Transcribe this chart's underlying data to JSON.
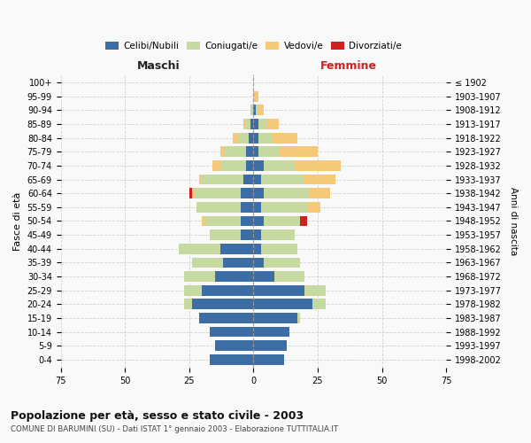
{
  "age_groups": [
    "0-4",
    "5-9",
    "10-14",
    "15-19",
    "20-24",
    "25-29",
    "30-34",
    "35-39",
    "40-44",
    "45-49",
    "50-54",
    "55-59",
    "60-64",
    "65-69",
    "70-74",
    "75-79",
    "80-84",
    "85-89",
    "90-94",
    "95-99",
    "100+"
  ],
  "birth_years": [
    "1998-2002",
    "1993-1997",
    "1988-1992",
    "1983-1987",
    "1978-1982",
    "1973-1977",
    "1968-1972",
    "1963-1967",
    "1958-1962",
    "1953-1957",
    "1948-1952",
    "1943-1947",
    "1938-1942",
    "1933-1937",
    "1928-1932",
    "1923-1927",
    "1918-1922",
    "1913-1917",
    "1908-1912",
    "1903-1907",
    "≤ 1902"
  ],
  "colors": {
    "celibi": "#3c6ea5",
    "coniugati": "#c5d9a0",
    "vedovi": "#f5c97a",
    "divorziati": "#cc2222"
  },
  "legend_labels": [
    "Celibi/Nubili",
    "Coniugati/e",
    "Vedovi/e",
    "Divorziati/e"
  ],
  "maschi": {
    "celibi": [
      17,
      15,
      17,
      21,
      24,
      20,
      15,
      12,
      13,
      5,
      5,
      5,
      5,
      4,
      3,
      3,
      2,
      1,
      0,
      0,
      0
    ],
    "coniugati": [
      0,
      0,
      0,
      0,
      3,
      7,
      12,
      12,
      16,
      12,
      14,
      17,
      18,
      16,
      10,
      8,
      4,
      2,
      1,
      0,
      0
    ],
    "vedovi": [
      0,
      0,
      0,
      0,
      0,
      0,
      0,
      0,
      0,
      0,
      1,
      0,
      1,
      1,
      3,
      2,
      2,
      1,
      0,
      0,
      0
    ],
    "divorziati": [
      0,
      0,
      0,
      0,
      0,
      0,
      0,
      0,
      0,
      0,
      0,
      0,
      1,
      0,
      0,
      0,
      0,
      0,
      0,
      0,
      0
    ]
  },
  "femmine": {
    "celibi": [
      12,
      13,
      14,
      17,
      23,
      20,
      8,
      4,
      3,
      3,
      4,
      3,
      4,
      3,
      4,
      2,
      2,
      2,
      1,
      0,
      0
    ],
    "coniugati": [
      0,
      0,
      0,
      1,
      5,
      8,
      12,
      14,
      14,
      13,
      14,
      18,
      18,
      17,
      12,
      8,
      5,
      3,
      1,
      0,
      0
    ],
    "vedovi": [
      0,
      0,
      0,
      0,
      0,
      0,
      0,
      0,
      0,
      0,
      0,
      5,
      8,
      12,
      18,
      15,
      10,
      5,
      2,
      2,
      0
    ],
    "divorziati": [
      0,
      0,
      0,
      0,
      0,
      0,
      0,
      0,
      0,
      0,
      3,
      0,
      0,
      0,
      0,
      0,
      0,
      0,
      0,
      0,
      0
    ]
  },
  "xlim": 75,
  "xlabel_maschi": "Maschi",
  "xlabel_femmine": "Femmine",
  "ylabel_left": "Fasce di età",
  "ylabel_right": "Anni di nascita",
  "title": "Popolazione per età, sesso e stato civile - 2003",
  "subtitle": "COMUNE DI BARUMINI (SU) - Dati ISTAT 1° gennaio 2003 - Elaborazione TUTTITALIA.IT",
  "background_color": "#f9f9f9",
  "grid_color": "#cccccc"
}
